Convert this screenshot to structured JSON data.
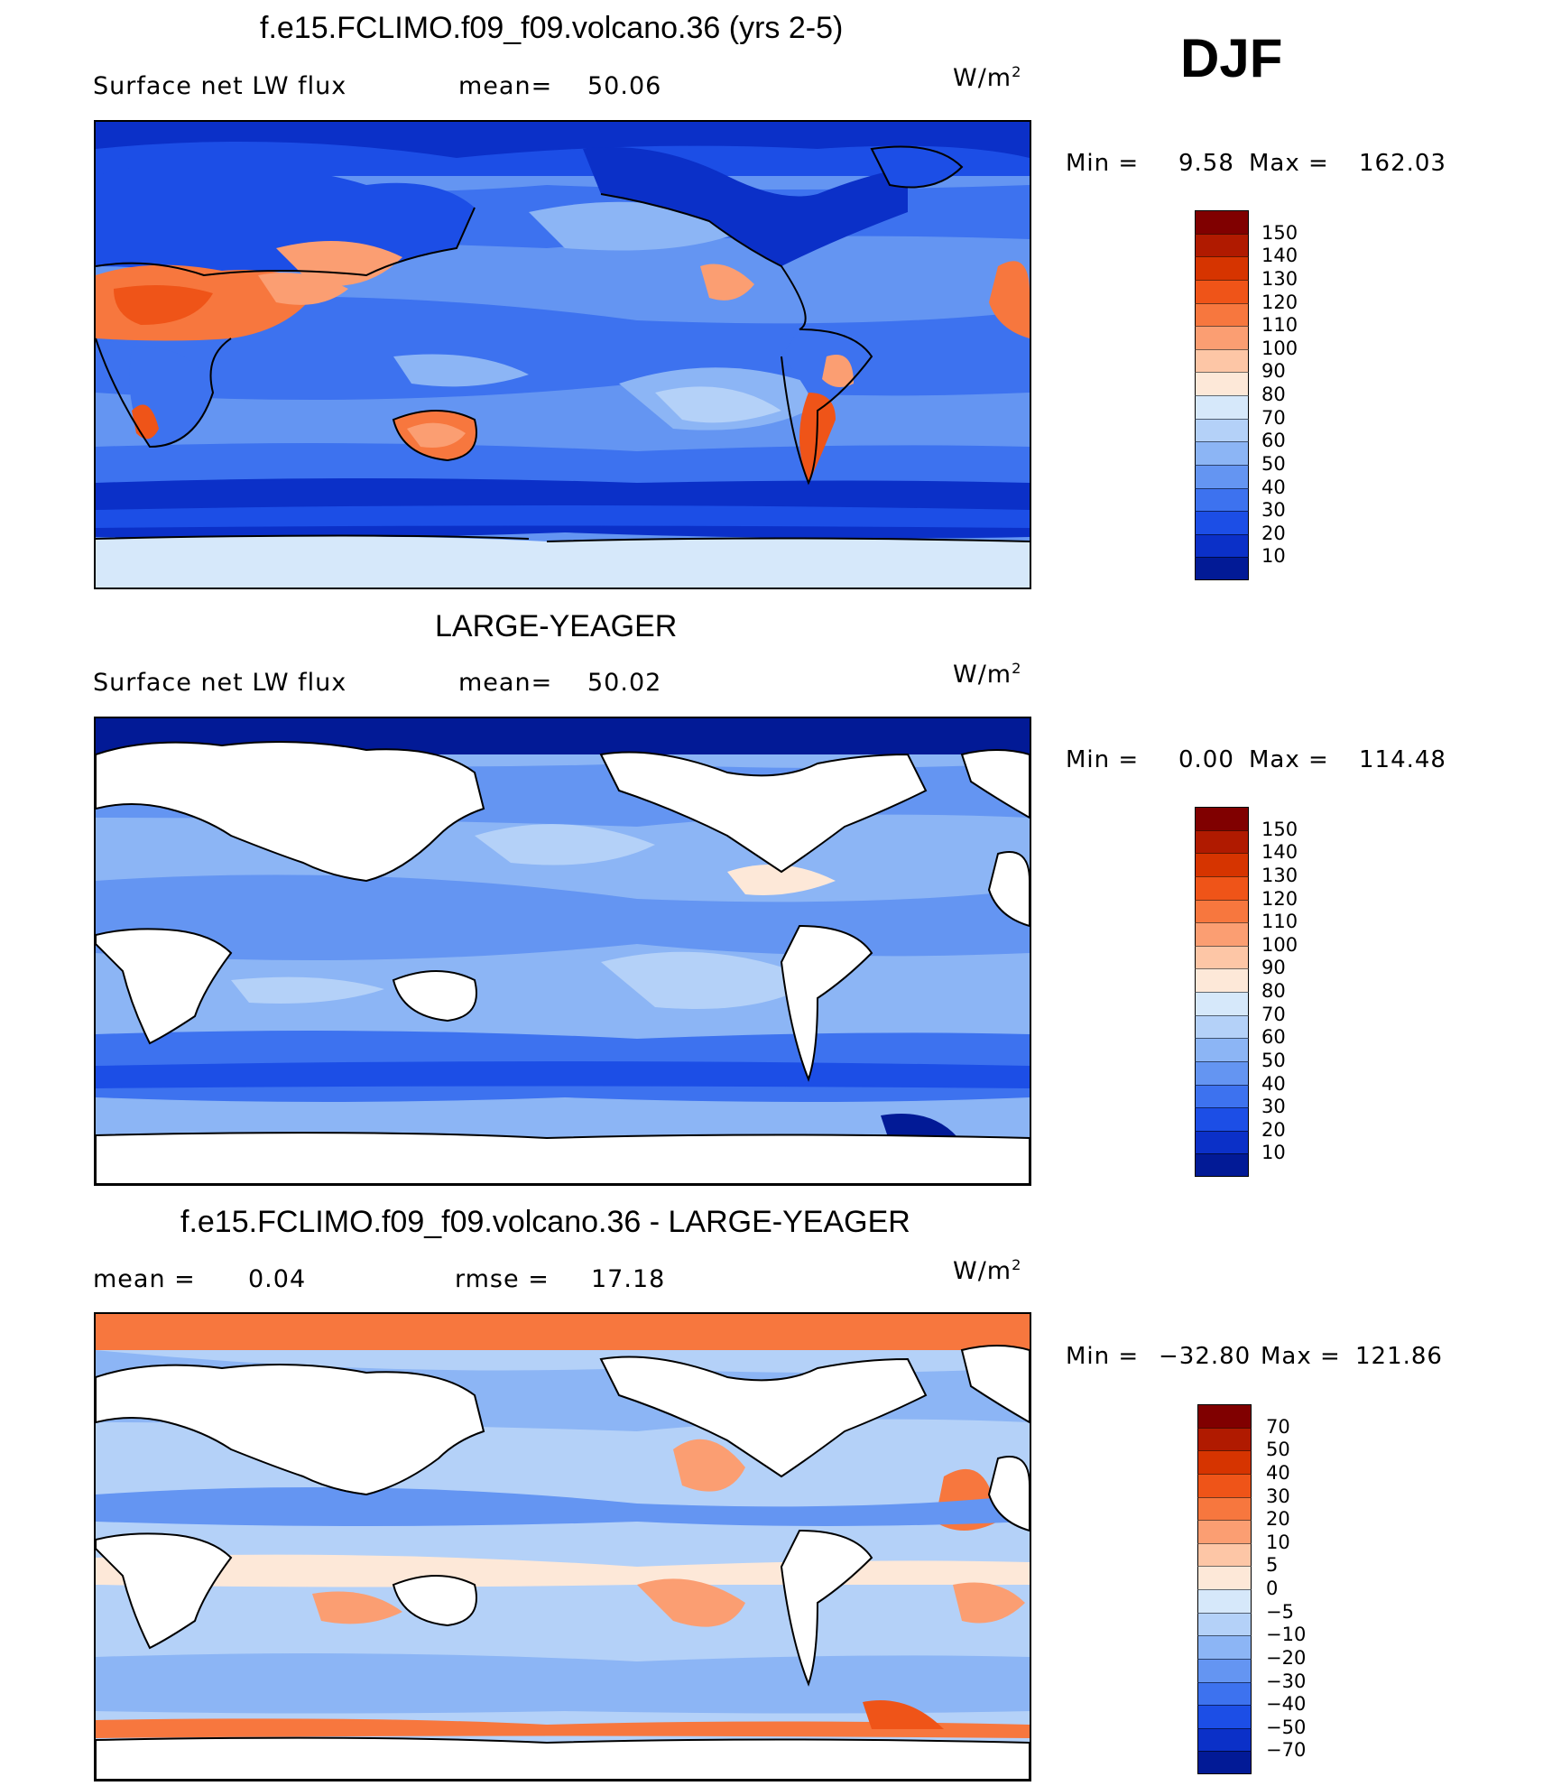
{
  "season": "DJF",
  "panels": [
    {
      "id": "model",
      "title": "f.e15.FCLIMO.f09_f09.volcano.36 (yrs 2-5)",
      "left_label": "Surface net LW flux",
      "mid_label": "mean=",
      "mid_value": "50.06",
      "units_base": "W/m",
      "units_exp": "2",
      "min_label": "Min =",
      "min_value": "9.58",
      "max_label": "Max =",
      "max_value": "162.03",
      "colorbar_ticks": [
        "150",
        "140",
        "130",
        "120",
        "110",
        "100",
        "90",
        "80",
        "70",
        "60",
        "50",
        "40",
        "30",
        "20",
        "10"
      ],
      "colorbar_colors": [
        "#800000",
        "#b01a00",
        "#d63400",
        "#ef5418",
        "#f7773e",
        "#fb9e72",
        "#fdc6a6",
        "#fde8d8",
        "#d6e8fa",
        "#b4d1f8",
        "#8cb5f5",
        "#6495f2",
        "#3d72ef",
        "#1c4ee6",
        "#0b30c8",
        "#021a96"
      ],
      "style": "abs"
    },
    {
      "id": "obs",
      "title": "LARGE-YEAGER",
      "left_label": "Surface net LW flux",
      "mid_label": "mean=",
      "mid_value": "50.02",
      "units_base": "W/m",
      "units_exp": "2",
      "min_label": "Min =",
      "min_value": "0.00",
      "max_label": "Max =",
      "max_value": "114.48",
      "colorbar_ticks": [
        "150",
        "140",
        "130",
        "120",
        "110",
        "100",
        "90",
        "80",
        "70",
        "60",
        "50",
        "40",
        "30",
        "20",
        "10"
      ],
      "colorbar_colors": [
        "#800000",
        "#b01a00",
        "#d63400",
        "#ef5418",
        "#f7773e",
        "#fb9e72",
        "#fdc6a6",
        "#fde8d8",
        "#d6e8fa",
        "#b4d1f8",
        "#8cb5f5",
        "#6495f2",
        "#3d72ef",
        "#1c4ee6",
        "#0b30c8",
        "#021a96"
      ],
      "style": "obs"
    },
    {
      "id": "diff",
      "title": "f.e15.FCLIMO.f09_f09.volcano.36 - LARGE-YEAGER",
      "left_label": "mean =",
      "left_value": "0.04",
      "mid_label": "rmse =",
      "mid_value": "17.18",
      "units_base": "W/m",
      "units_exp": "2",
      "min_label": "Min =",
      "min_value": "−32.80",
      "max_label": "Max =",
      "max_value": "121.86",
      "colorbar_ticks": [
        "70",
        "50",
        "40",
        "30",
        "20",
        "10",
        "5",
        "0",
        "−5",
        "−10",
        "−20",
        "−30",
        "−40",
        "−50",
        "−70"
      ],
      "colorbar_colors": [
        "#800000",
        "#b01a00",
        "#d63400",
        "#ef5418",
        "#f7773e",
        "#fb9e72",
        "#fdc6a6",
        "#fde8d8",
        "#d6e8fa",
        "#b4d1f8",
        "#8cb5f5",
        "#6495f2",
        "#3d72ef",
        "#1c4ee6",
        "#0b30c8",
        "#021a96"
      ],
      "style": "diff"
    }
  ],
  "chart_data": [
    {
      "type": "heatmap",
      "title": "f.e15.FCLIMO.f09_f09.volcano.36 (yrs 2-5)",
      "field": "Surface net LW flux",
      "units": "W/m2",
      "mean": 50.06,
      "min": 9.58,
      "max": 162.03,
      "levels": [
        10,
        20,
        30,
        40,
        50,
        60,
        70,
        80,
        90,
        100,
        110,
        120,
        130,
        140,
        150
      ]
    },
    {
      "type": "heatmap",
      "title": "LARGE-YEAGER",
      "field": "Surface net LW flux",
      "units": "W/m2",
      "mean": 50.02,
      "min": 0.0,
      "max": 114.48,
      "levels": [
        10,
        20,
        30,
        40,
        50,
        60,
        70,
        80,
        90,
        100,
        110,
        120,
        130,
        140,
        150
      ]
    },
    {
      "type": "heatmap",
      "title": "f.e15.FCLIMO.f09_f09.volcano.36 - LARGE-YEAGER",
      "units": "W/m2",
      "mean": 0.04,
      "rmse": 17.18,
      "min": -32.8,
      "max": 121.86,
      "levels": [
        -70,
        -50,
        -40,
        -30,
        -20,
        -10,
        -5,
        0,
        5,
        10,
        20,
        30,
        40,
        50,
        70
      ]
    }
  ]
}
